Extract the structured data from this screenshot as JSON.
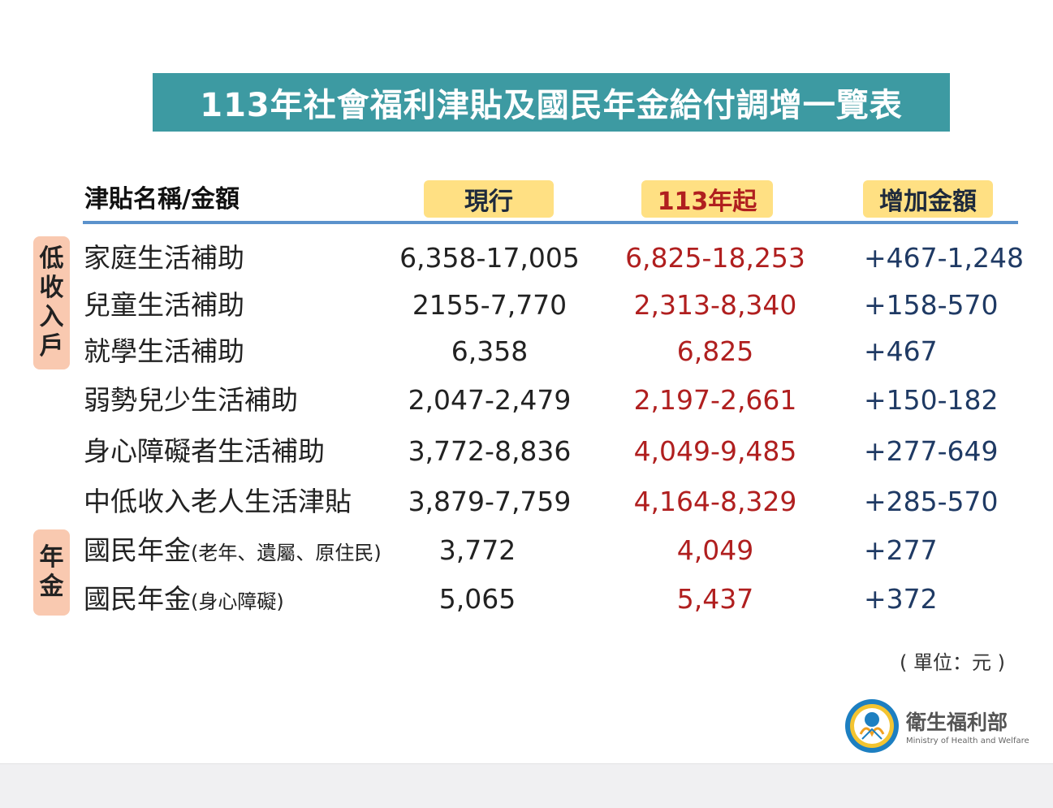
{
  "title": "113年社會福利津貼及國民年金給付調增一覽表",
  "header": {
    "name_label": "津貼名稱/金額",
    "current_label": "現行",
    "new_label": "113年起",
    "increase_label": "增加金額"
  },
  "groups": {
    "low_income": [
      "低",
      "收",
      "入",
      "戶"
    ],
    "pension": [
      "年",
      "金"
    ]
  },
  "rows": [
    {
      "name": "家庭生活補助",
      "sub": "",
      "current": "6,358-17,005",
      "new": "6,825-18,253",
      "increase": "+467-1,248"
    },
    {
      "name": "兒童生活補助",
      "sub": "",
      "current": "2155-7,770",
      "new": "2,313-8,340",
      "increase": "+158-570"
    },
    {
      "name": "就學生活補助",
      "sub": "",
      "current": "6,358",
      "new": "6,825",
      "increase": "+467"
    },
    {
      "name": "弱勢兒少生活補助",
      "sub": "",
      "current": "2,047-2,479",
      "new": "2,197-2,661",
      "increase": "+150-182"
    },
    {
      "name": "身心障礙者生活補助",
      "sub": "",
      "current": "3,772-8,836",
      "new": "4,049-9,485",
      "increase": "+277-649"
    },
    {
      "name": "中低收入老人生活津貼",
      "sub": "",
      "current": "3,879-7,759",
      "new": "4,164-8,329",
      "increase": "+285-570"
    },
    {
      "name": "國民年金",
      "sub": "(老年、遺屬、原住民)",
      "current": "3,772",
      "new": "4,049",
      "increase": "+277"
    },
    {
      "name": "國民年金",
      "sub": "(身心障礙)",
      "current": "5,065",
      "new": "5,437",
      "increase": "+372"
    }
  ],
  "unit_note": "( 單位：元 )",
  "logo": {
    "name": "衛生福利部",
    "english": "Ministry of Health and Welfare",
    "icon": "ministry-emblem-icon"
  },
  "colors": {
    "title_bg": "#3d9aa2",
    "header_pill": "#ffe083",
    "group_tag": "#f9c9b0",
    "new_value": "#b01f1f",
    "increase_value": "#1f3a64",
    "rule": "#5b92cc"
  }
}
